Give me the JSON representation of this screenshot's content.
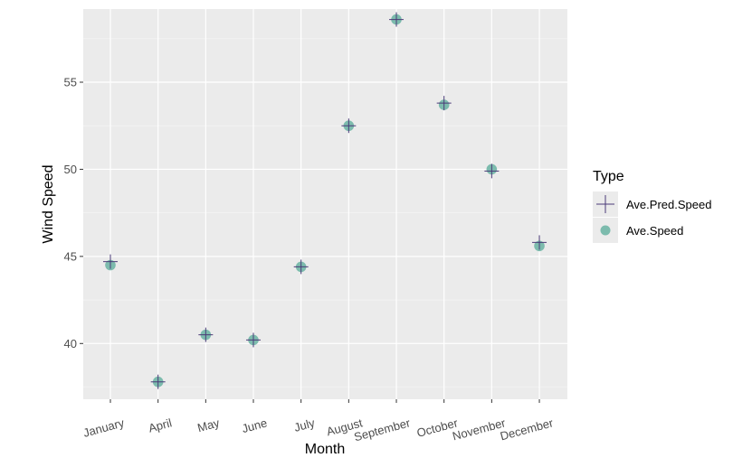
{
  "chart_data": {
    "type": "scatter",
    "xlabel": "Month",
    "ylabel": "Wind Speed",
    "categories": [
      "January",
      "April",
      "May",
      "June",
      "July",
      "August",
      "September",
      "October",
      "November",
      "December"
    ],
    "ylim": [
      36.8,
      59.2
    ],
    "yticks": [
      40,
      45,
      50,
      55
    ],
    "grid": true,
    "legend": {
      "title": "Type",
      "position": "right",
      "entries": [
        {
          "label": "Ave.Pred.Speed",
          "shape": "cross",
          "color": "#4b3b78"
        },
        {
          "label": "Ave.Speed",
          "shape": "circle",
          "color": "#69b3a2"
        }
      ]
    },
    "series": [
      {
        "name": "Ave.Pred.Speed",
        "shape": "cross",
        "color": "#4b3b78",
        "values": [
          44.7,
          37.8,
          40.5,
          40.2,
          44.4,
          52.5,
          58.6,
          53.8,
          49.9,
          45.8
        ]
      },
      {
        "name": "Ave.Speed",
        "shape": "circle",
        "color": "#69b3a2",
        "values": [
          44.5,
          37.8,
          40.5,
          40.2,
          44.4,
          52.5,
          58.6,
          53.7,
          50.0,
          45.6
        ]
      }
    ]
  }
}
